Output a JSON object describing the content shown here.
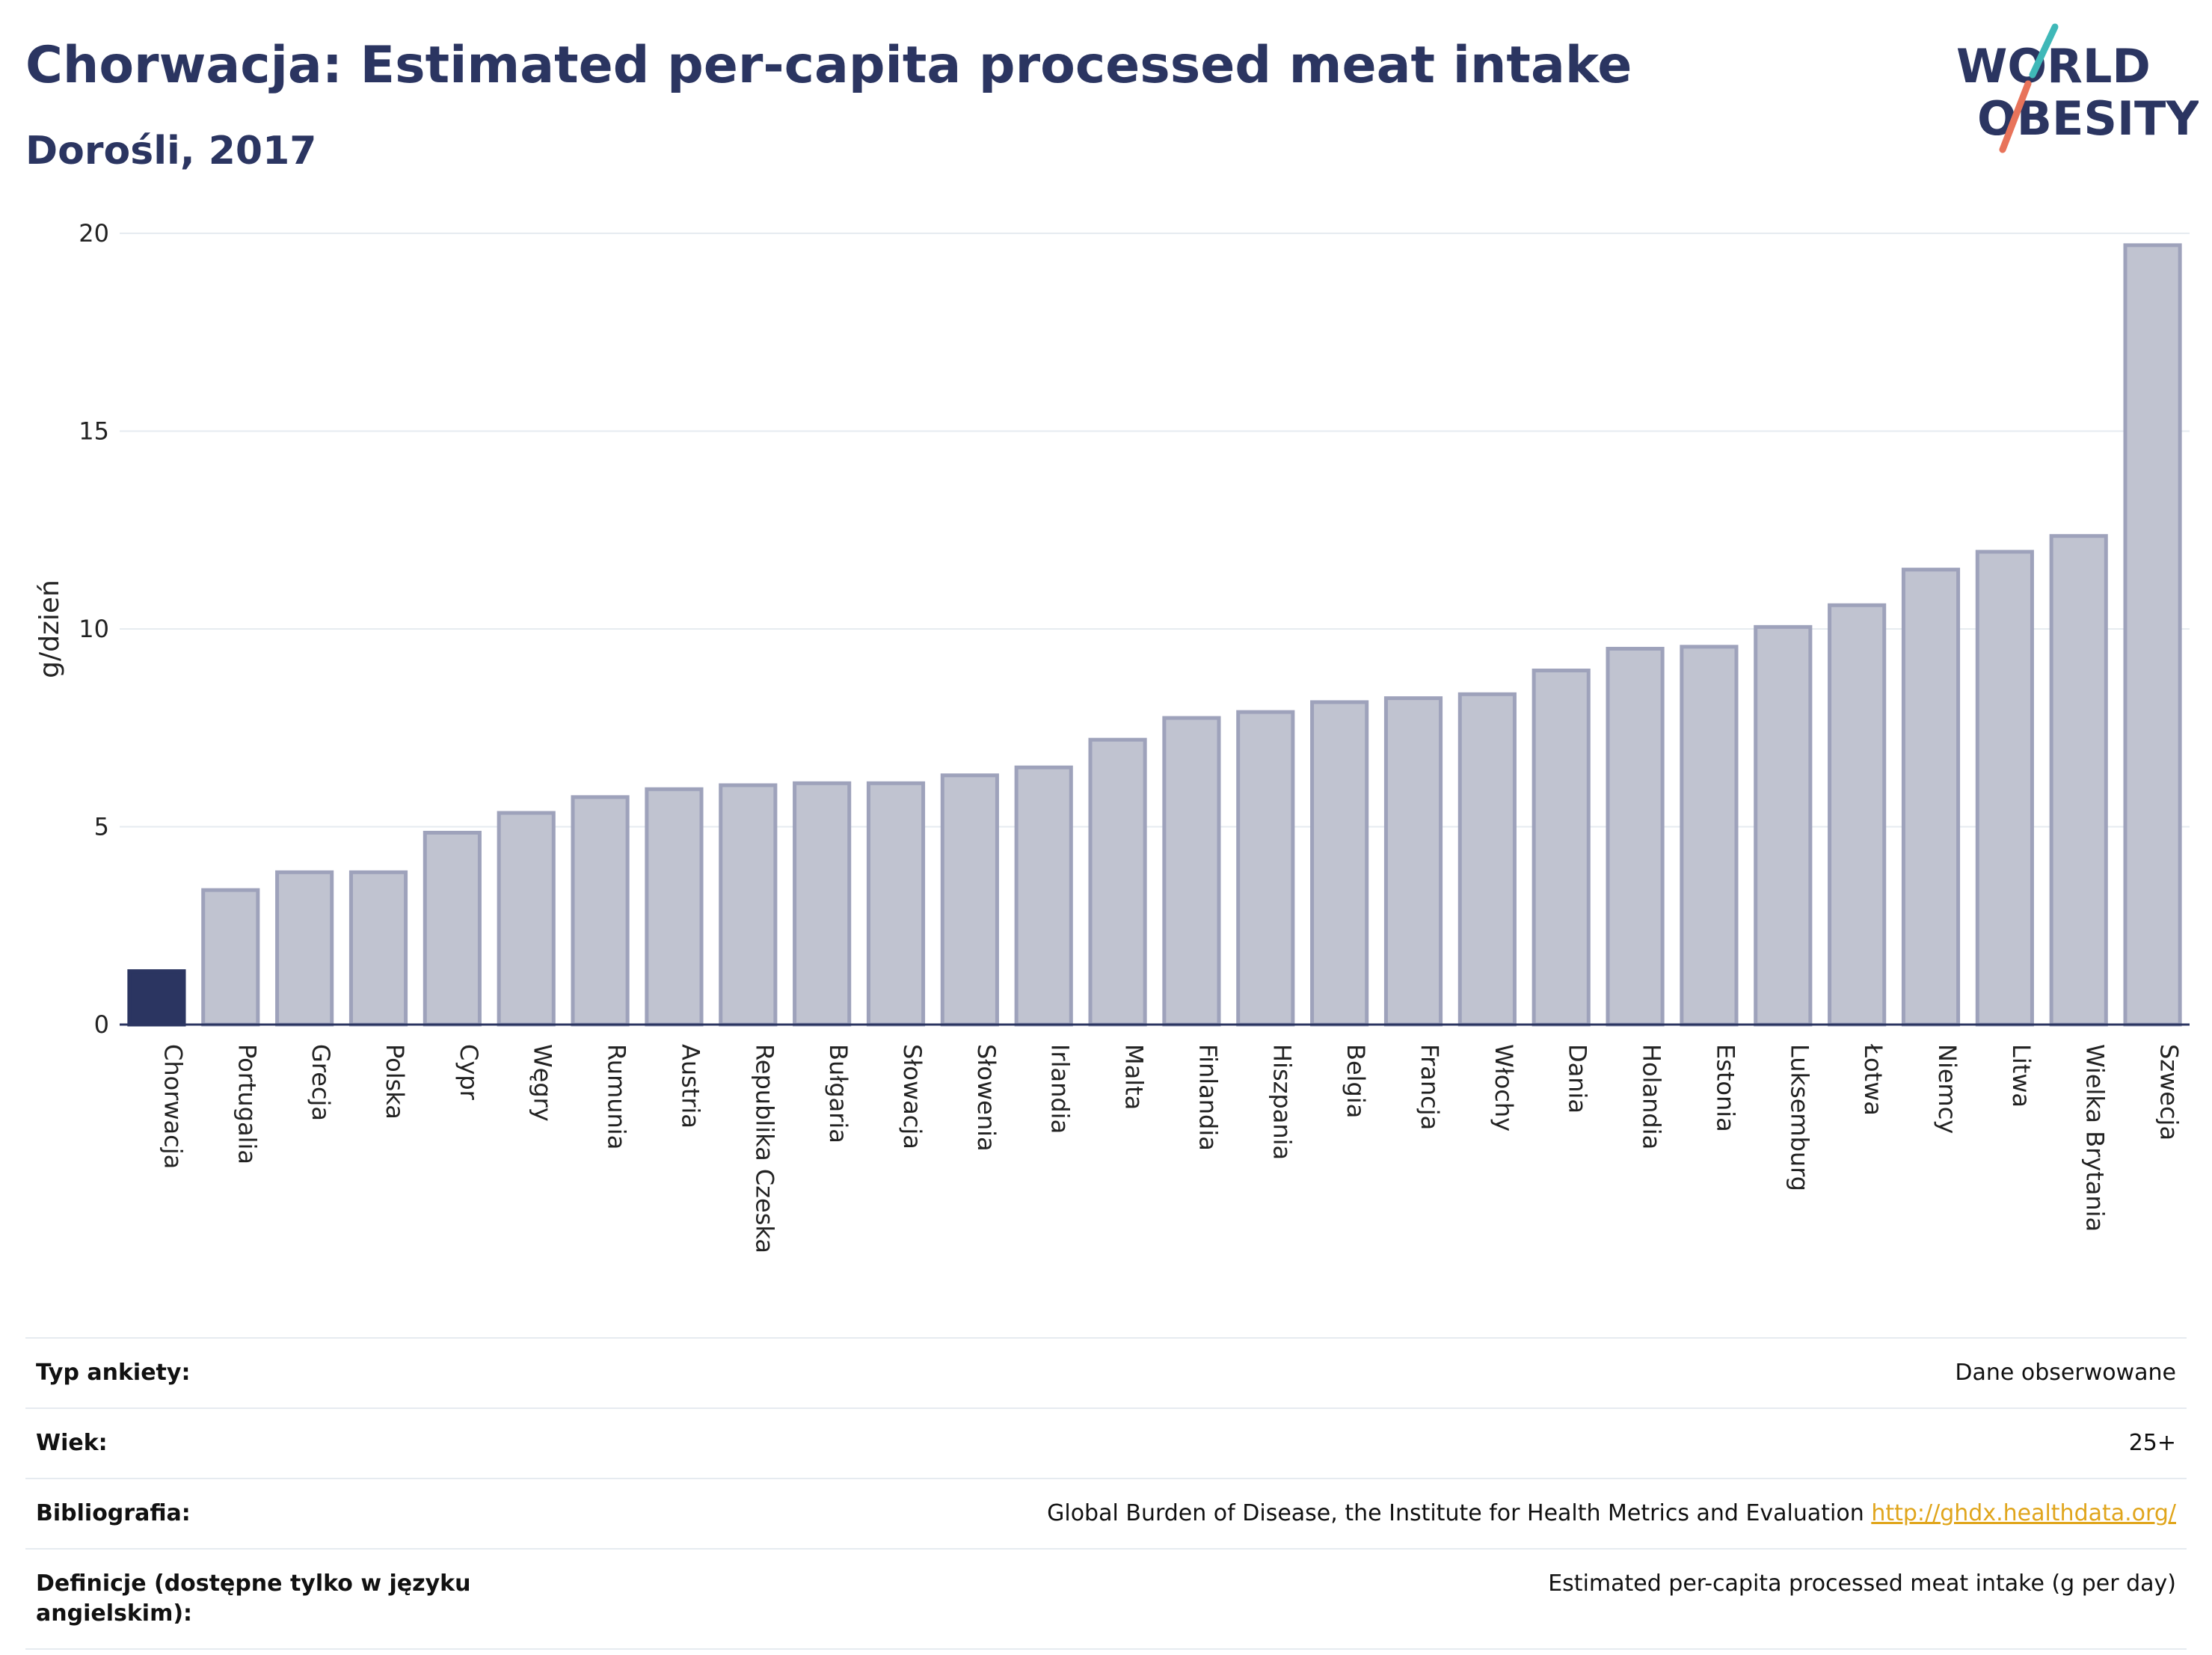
{
  "header": {
    "title": "Chorwacja: Estimated per-capita processed meat intake",
    "subtitle": "Dorośli, 2017"
  },
  "logo": {
    "line1": "WORLD",
    "line2": "OBESITY",
    "accent_teal": "#3fb8b8",
    "accent_coral": "#e8735a"
  },
  "colors": {
    "highlight_bar": "#2b3561",
    "other_bar_fill": "#c0c3d0",
    "other_bar_stroke": "#9ea2bb"
  },
  "chart_data": {
    "type": "bar",
    "title": "Chorwacja: Estimated per-capita processed meat intake",
    "subtitle": "Dorośli, 2017",
    "xlabel": "",
    "ylabel": "g/dzień",
    "ylim": [
      0,
      20
    ],
    "yticks": [
      0,
      5,
      10,
      15,
      20
    ],
    "grid": true,
    "highlight": "Chorwacja",
    "categories": [
      "Chorwacja",
      "Portugalia",
      "Grecja",
      "Polska",
      "Cypr",
      "Węgry",
      "Rumunia",
      "Austria",
      "Republika Czeska",
      "Bułgaria",
      "Słowacja",
      "Słowenia",
      "Irlandia",
      "Malta",
      "Finlandia",
      "Hiszpania",
      "Belgia",
      "Francja",
      "Włochy",
      "Dania",
      "Holandia",
      "Estonia",
      "Luksemburg",
      "Łotwa",
      "Niemcy",
      "Litwa",
      "Wielka Brytania",
      "Szwecja"
    ],
    "values": [
      1.35,
      3.4,
      3.85,
      3.85,
      4.85,
      5.35,
      5.75,
      5.95,
      6.05,
      6.1,
      6.1,
      6.3,
      6.5,
      7.2,
      7.75,
      7.9,
      8.15,
      8.25,
      8.35,
      8.95,
      9.5,
      9.55,
      10.05,
      10.6,
      11.5,
      11.95,
      12.35,
      19.7
    ]
  },
  "info_table": {
    "rows": [
      {
        "key": "Typ ankiety:",
        "value": "Dane obserwowane"
      },
      {
        "key": "Wiek:",
        "value": "25+"
      },
      {
        "key": "Bibliografia:",
        "value": "Global Burden of Disease, the Institute for Health Metrics and Evaluation",
        "link": "http://ghdx.healthdata.org/"
      },
      {
        "key": "Definicje (dostępne tylko w języku angielskim):",
        "value": "Estimated per-capita processed meat intake (g per day)"
      }
    ]
  }
}
